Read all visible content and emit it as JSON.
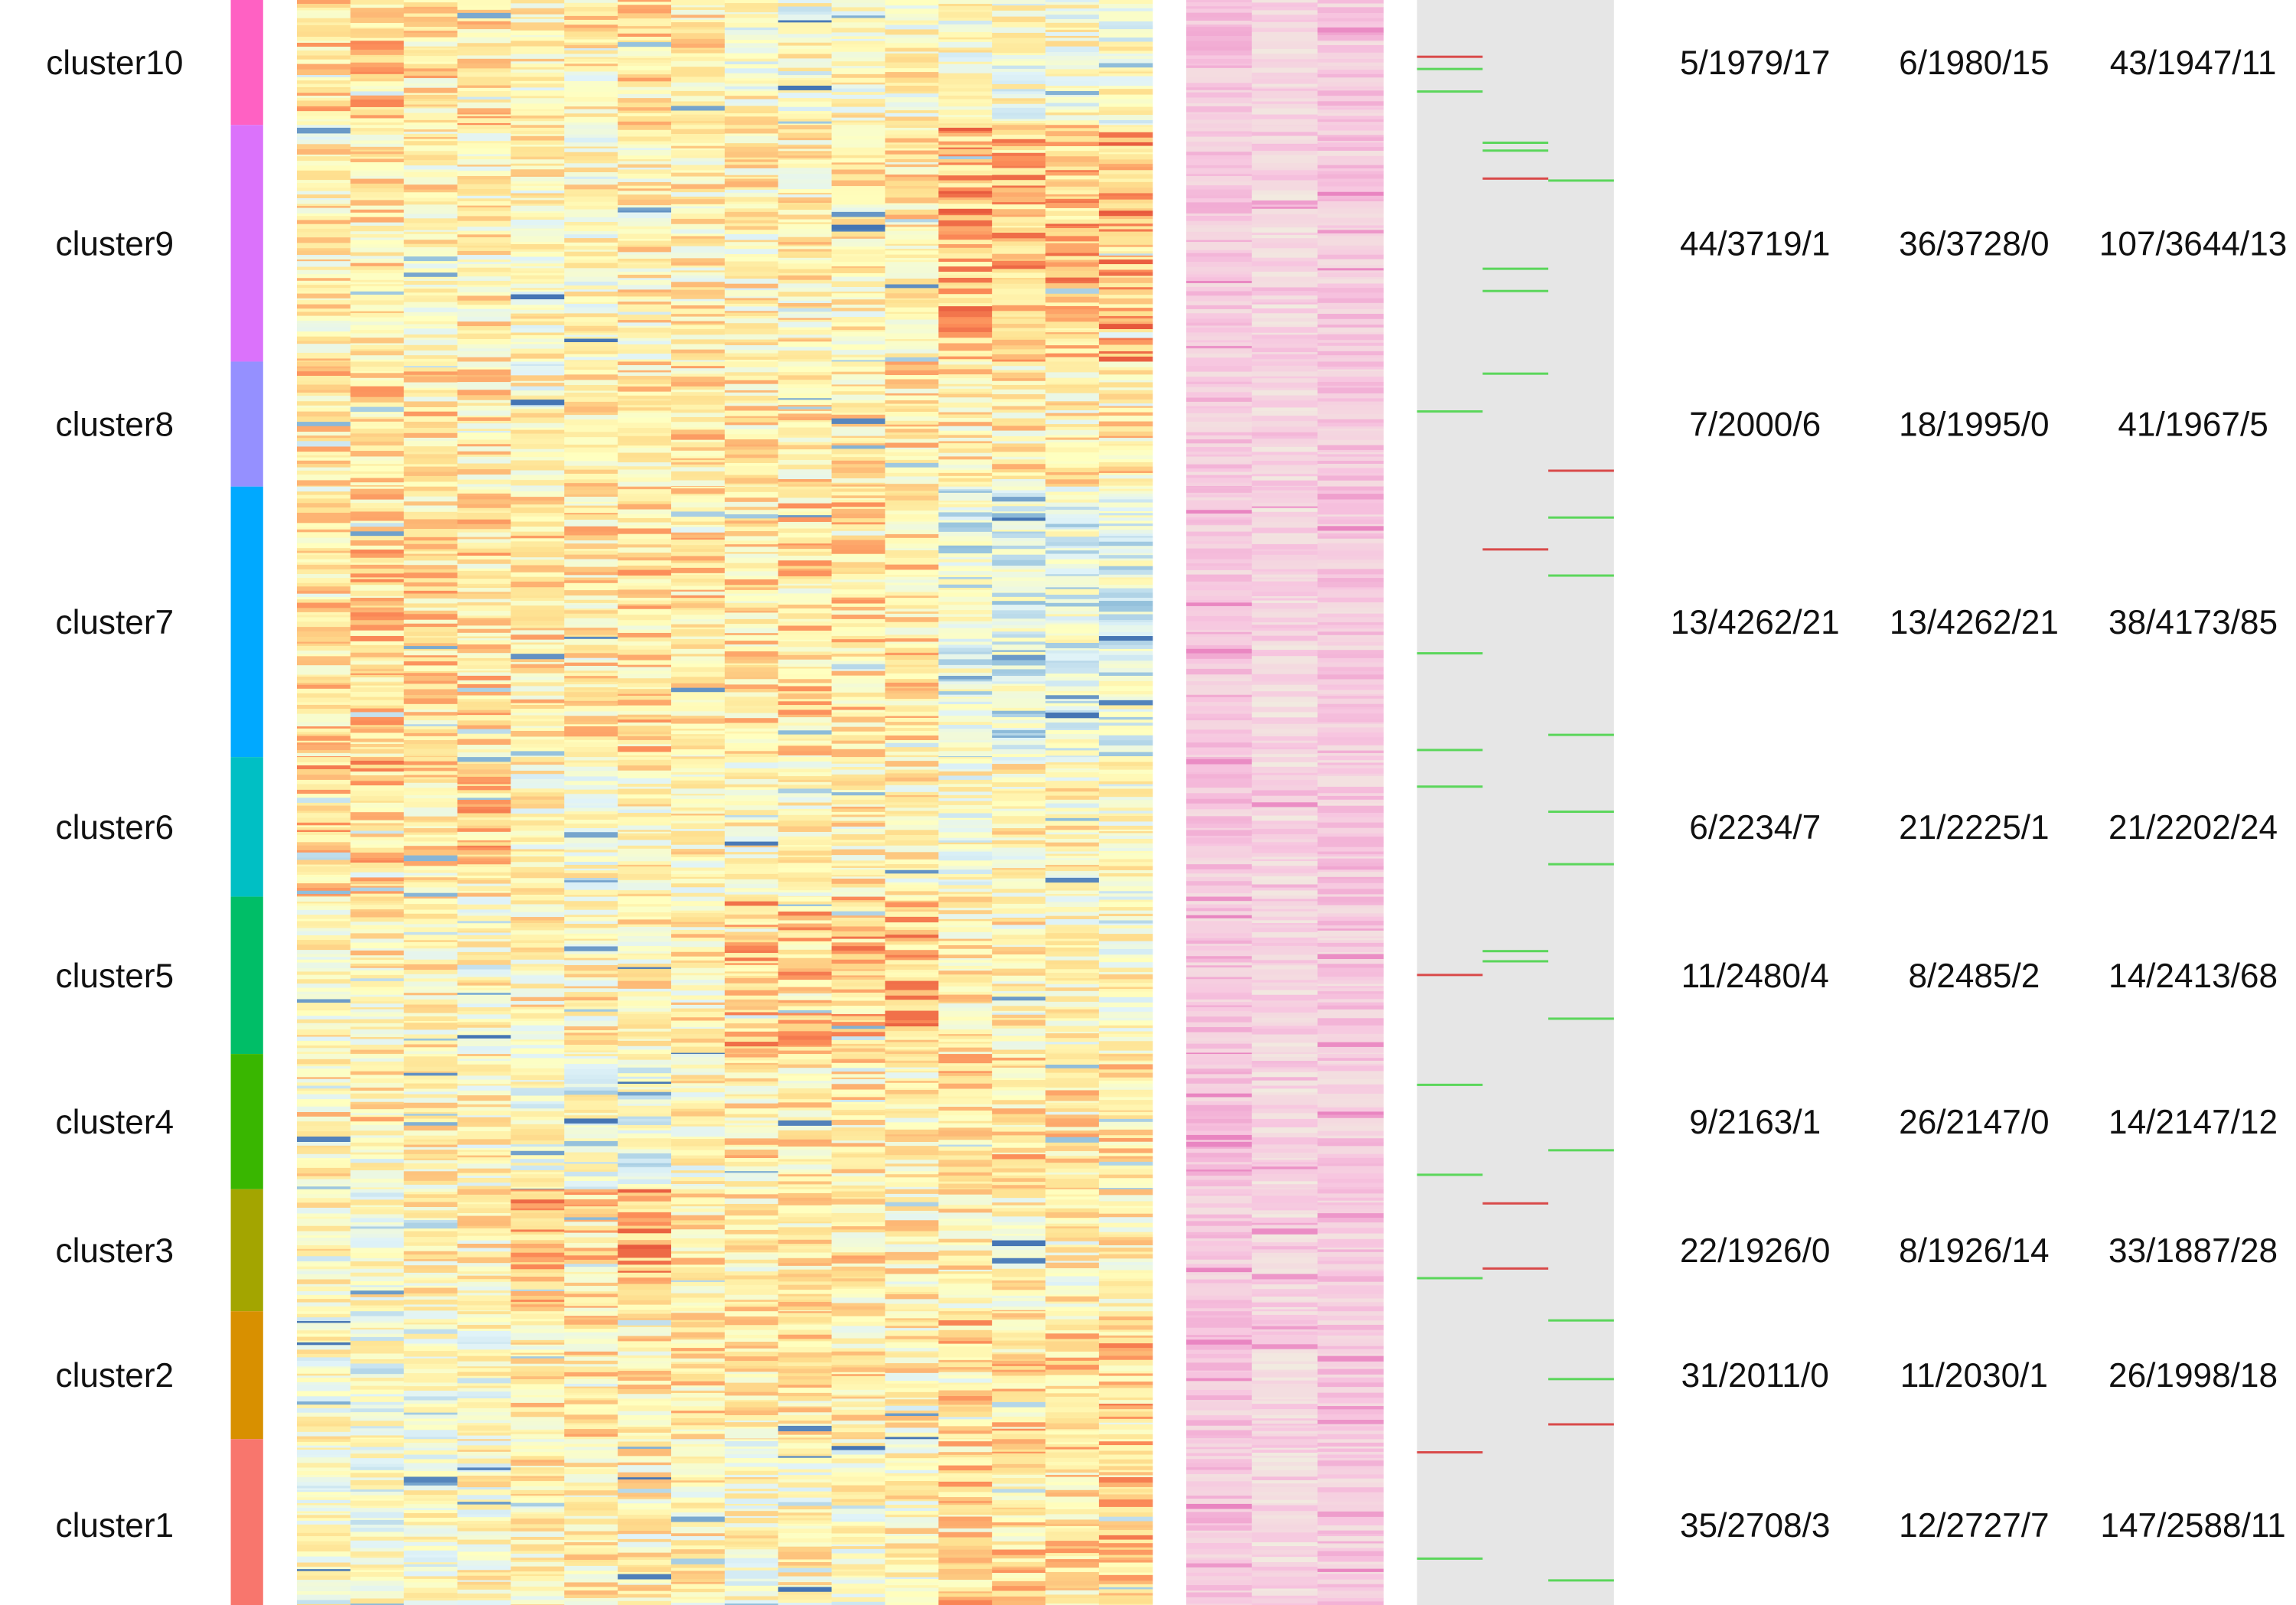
{
  "chart_data": {
    "type": "heatmap",
    "rows": [
      {
        "cluster": "cluster10",
        "color": "#FF61C3",
        "counts": [
          "5/1979/17",
          "6/1980/15",
          "43/1947/11"
        ]
      },
      {
        "cluster": "cluster9",
        "color": "#DB72FB",
        "counts": [
          "44/3719/1",
          "36/3728/0",
          "107/3644/13"
        ]
      },
      {
        "cluster": "cluster8",
        "color": "#9590FF",
        "counts": [
          "7/2000/6",
          "18/1995/0",
          "41/1967/5"
        ]
      },
      {
        "cluster": "cluster7",
        "color": "#00A9FF",
        "counts": [
          "13/4262/21",
          "13/4262/21",
          "38/4173/85"
        ]
      },
      {
        "cluster": "cluster6",
        "color": "#00BFC4",
        "counts": [
          "6/2234/7",
          "21/2225/1",
          "21/2202/24"
        ]
      },
      {
        "cluster": "cluster5",
        "color": "#00BE67",
        "counts": [
          "11/2480/4",
          "8/2485/2",
          "14/2413/68"
        ]
      },
      {
        "cluster": "cluster4",
        "color": "#39B600",
        "counts": [
          "9/2163/1",
          "26/2147/0",
          "14/2147/12"
        ]
      },
      {
        "cluster": "cluster3",
        "color": "#A3A500",
        "counts": [
          "22/1926/0",
          "8/1926/14",
          "33/1887/28"
        ]
      },
      {
        "cluster": "cluster2",
        "color": "#D89000",
        "counts": [
          "31/2011/0",
          "11/2030/1",
          "26/1998/18"
        ]
      },
      {
        "cluster": "cluster1",
        "color": "#F8766D",
        "counts": [
          "35/2708/3",
          "12/2727/7",
          "147/2588/11"
        ]
      }
    ],
    "expression_columns": 16,
    "palette": {
      "expression": [
        "#4575B4",
        "#91BFDB",
        "#E0F3F8",
        "#FFFFBF",
        "#FEE090",
        "#FC8D59",
        "#D73027"
      ],
      "second_panel": [
        "#F1EDE0",
        "#F7C6E0",
        "#E985C1"
      ],
      "third_panel_background": "#E6E6E6",
      "third_panel_down": "#D94A4A",
      "third_panel_up": "#5BD65B"
    }
  }
}
